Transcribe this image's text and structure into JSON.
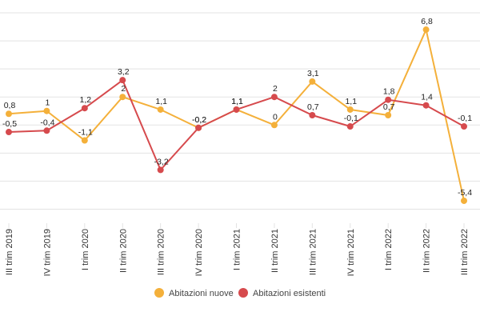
{
  "chart_data": {
    "type": "line",
    "title": "",
    "xlabel": "",
    "ylabel": "",
    "ylim": [
      -7,
      8
    ],
    "grid": true,
    "legend_position": "bottom-center",
    "categories": [
      "III trim 2019",
      "IV trim 2019",
      "I trim 2020",
      "II trim 2020",
      "III trim 2020",
      "IV trim 2020",
      "I trim 2021",
      "II trim 2021",
      "III trim 2021",
      "IV trim 2021",
      "I trim 2022",
      "II trim 2022",
      "III trim 2022"
    ],
    "series": [
      {
        "name": "Abitazioni nuove",
        "color": "#f4b03a",
        "values": [
          0.8,
          1,
          -1.1,
          2,
          1.1,
          -0.2,
          1.1,
          0,
          3.1,
          1.1,
          0.7,
          6.8,
          -5.4
        ],
        "labels": [
          "0,8",
          "1",
          "-1,1",
          "2",
          "1,1",
          "-0,2",
          "1,1",
          "0",
          "3,1",
          "1,1",
          "0,7",
          "6,8",
          "-5,4"
        ]
      },
      {
        "name": "Abitazioni esistenti",
        "color": "#d64a4d",
        "values": [
          -0.5,
          -0.4,
          1.2,
          3.2,
          -3.2,
          -0.2,
          1.1,
          2,
          0.7,
          -0.1,
          1.8,
          1.4,
          -0.1
        ],
        "labels": [
          "-0,5",
          "-0,4",
          "1,2",
          "3,2",
          "-3,2",
          "-0,2",
          "1,1",
          "2",
          "0,7",
          "-0,1",
          "1,8",
          "1,4",
          "-0,1"
        ]
      }
    ]
  }
}
